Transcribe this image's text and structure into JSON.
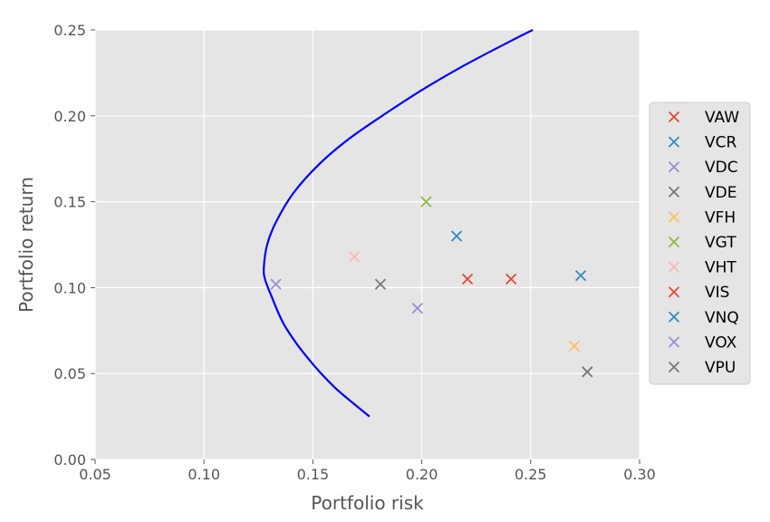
{
  "chart_data": {
    "type": "scatter",
    "title": "",
    "xlabel": "Portfolio risk",
    "ylabel": "Portfolio return",
    "xlim": [
      0.05,
      0.3
    ],
    "ylim": [
      0.0,
      0.25
    ],
    "x_ticks": [
      "0.05",
      "0.10",
      "0.15",
      "0.20",
      "0.25",
      "0.30"
    ],
    "y_ticks": [
      "0.00",
      "0.05",
      "0.10",
      "0.15",
      "0.20",
      "0.25"
    ],
    "grid": true,
    "legend_position": "right",
    "frontier": {
      "color": "#0000ff",
      "points": [
        [
          0.176,
          0.025
        ],
        [
          0.16,
          0.042
        ],
        [
          0.147,
          0.06
        ],
        [
          0.137,
          0.078
        ],
        [
          0.131,
          0.095
        ],
        [
          0.128,
          0.105
        ],
        [
          0.1275,
          0.112
        ],
        [
          0.129,
          0.125
        ],
        [
          0.133,
          0.138
        ],
        [
          0.141,
          0.155
        ],
        [
          0.153,
          0.172
        ],
        [
          0.167,
          0.187
        ],
        [
          0.183,
          0.201
        ],
        [
          0.2,
          0.215
        ],
        [
          0.219,
          0.229
        ],
        [
          0.24,
          0.243
        ],
        [
          0.251,
          0.25
        ]
      ]
    },
    "series": [
      {
        "name": "VAW",
        "color": "#e24a33",
        "x": 0.241,
        "y": 0.105
      },
      {
        "name": "VCR",
        "color": "#348abd",
        "x": 0.216,
        "y": 0.13
      },
      {
        "name": "VDC",
        "color": "#988ed5",
        "x": 0.198,
        "y": 0.088
      },
      {
        "name": "VDE",
        "color": "#777777",
        "x": 0.181,
        "y": 0.102
      },
      {
        "name": "VFH",
        "color": "#fbc15e",
        "x": 0.27,
        "y": 0.066
      },
      {
        "name": "VGT",
        "color": "#8eba42",
        "x": 0.202,
        "y": 0.15
      },
      {
        "name": "VHT",
        "color": "#ffb5b8",
        "x": 0.169,
        "y": 0.118
      },
      {
        "name": "VIS",
        "color": "#e24a33",
        "x": 0.221,
        "y": 0.105
      },
      {
        "name": "VNQ",
        "color": "#348abd",
        "x": 0.273,
        "y": 0.107
      },
      {
        "name": "VOX",
        "color": "#988ed5",
        "x": 0.133,
        "y": 0.102
      },
      {
        "name": "VPU",
        "color": "#777777",
        "x": 0.276,
        "y": 0.051
      }
    ]
  }
}
